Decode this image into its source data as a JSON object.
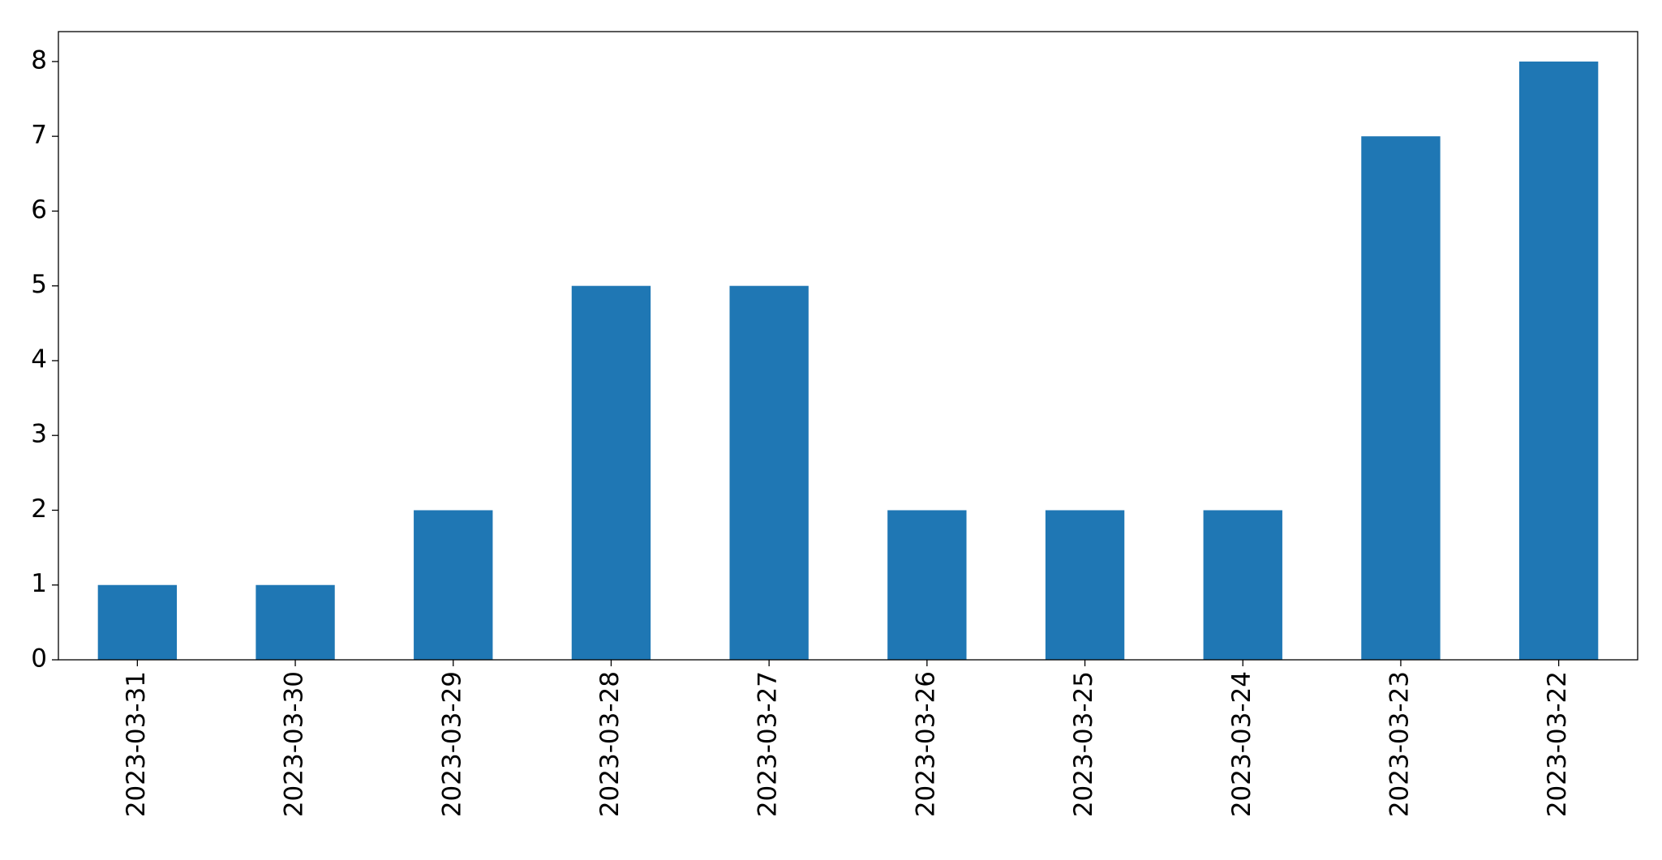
{
  "chart_data": {
    "type": "bar",
    "categories": [
      "2023-03-31",
      "2023-03-30",
      "2023-03-29",
      "2023-03-28",
      "2023-03-27",
      "2023-03-26",
      "2023-03-25",
      "2023-03-24",
      "2023-03-23",
      "2023-03-22"
    ],
    "values": [
      1,
      1,
      2,
      5,
      5,
      2,
      2,
      2,
      7,
      8
    ],
    "color": "#1f77b4",
    "ylim": [
      0,
      8.4
    ],
    "yticks": [
      0,
      1,
      2,
      3,
      4,
      5,
      6,
      7,
      8
    ],
    "grid": false
  }
}
